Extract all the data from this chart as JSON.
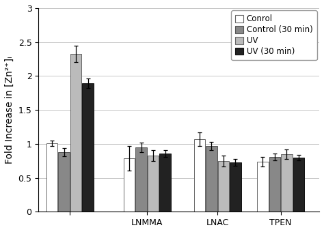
{
  "groups": [
    "",
    "LNMMA",
    "LNAC",
    "TPEN"
  ],
  "series": [
    {
      "label": "Conrol",
      "color": "#ffffff",
      "edgecolor": "#666666",
      "values": [
        1.01,
        0.79,
        1.07,
        0.74
      ],
      "errors": [
        0.04,
        0.18,
        0.1,
        0.07
      ]
    },
    {
      "label": "Control (30 min)",
      "color": "#888888",
      "edgecolor": "#555555",
      "values": [
        0.88,
        0.95,
        0.97,
        0.81
      ],
      "errors": [
        0.06,
        0.07,
        0.06,
        0.05
      ]
    },
    {
      "label": "UV",
      "color": "#bbbbbb",
      "edgecolor": "#666666",
      "values": [
        2.33,
        0.83,
        0.75,
        0.85
      ],
      "errors": [
        0.12,
        0.08,
        0.08,
        0.07
      ]
    },
    {
      "label": "UV (30 min)",
      "color": "#222222",
      "edgecolor": "#111111",
      "values": [
        1.89,
        0.86,
        0.73,
        0.8
      ],
      "errors": [
        0.07,
        0.05,
        0.05,
        0.04
      ]
    }
  ],
  "ylabel": "Fold Increase in [Zn²⁺]ᵢ",
  "ylim": [
    0,
    3.0
  ],
  "yticks": [
    0,
    0.5,
    1.0,
    1.5,
    2.0,
    2.5,
    3.0
  ],
  "ytick_labels": [
    "0",
    "0.5",
    "1",
    "1.5",
    "2",
    "2.5",
    "3"
  ],
  "bar_width": 0.16,
  "group_centers": [
    0.45,
    1.55,
    2.55,
    3.45
  ],
  "xlim": [
    0.0,
    4.0
  ],
  "background_color": "#ffffff",
  "legend_fontsize": 8.5,
  "axis_fontsize": 10,
  "tick_fontsize": 9
}
